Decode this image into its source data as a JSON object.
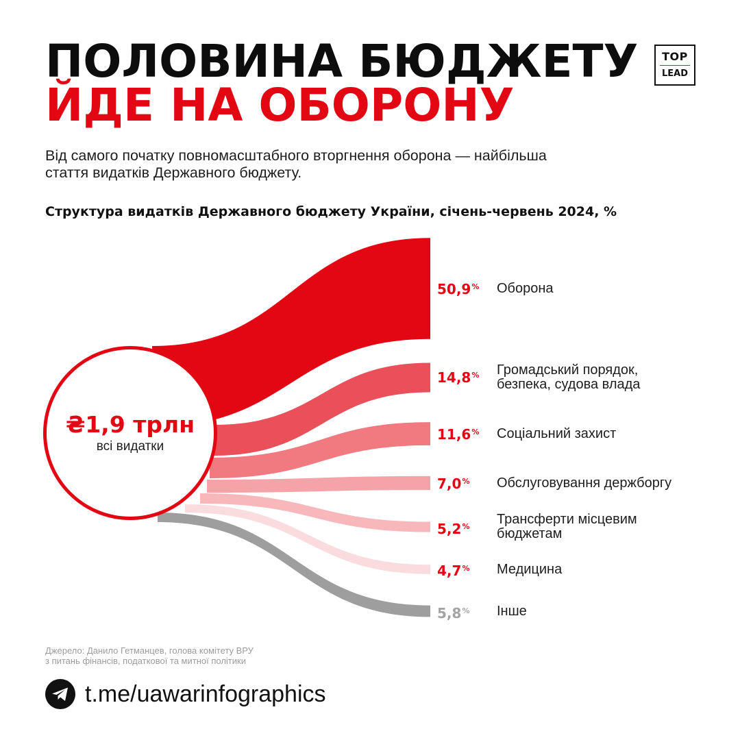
{
  "header": {
    "title_line1": "ПОЛОВИНА БЮДЖЕТУ",
    "title_line2": "ЙДЕ НА ОБОРОНУ",
    "subtitle_line1": "Від самого початку повномасштабного вторгнення оборона — найбільша",
    "subtitle_line2": "стаття видатків Державного бюджету."
  },
  "logo": {
    "top": "TOP",
    "bottom": "LEAD"
  },
  "chart_data": {
    "type": "sankey",
    "title": "Структура видатків Державного бюджету України, січень-червень 2024, %",
    "total": {
      "amount": "₴1,9 трлн",
      "caption": "всі видатки"
    },
    "unit_symbol": "%",
    "flows": [
      {
        "value": 50.9,
        "display": "50,9",
        "label_lines": [
          "Оборона"
        ],
        "color": "#e30613"
      },
      {
        "value": 14.8,
        "display": "14,8",
        "label_lines": [
          "Громадський порядок,",
          "безпека, судова влада"
        ],
        "color": "#ea505a"
      },
      {
        "value": 11.6,
        "display": "11,6",
        "label_lines": [
          "Соціальний захист"
        ],
        "color": "#f07a80"
      },
      {
        "value": 7.0,
        "display": "7,0",
        "label_lines": [
          "Обслуговування держборгу"
        ],
        "color": "#f4a3a8"
      },
      {
        "value": 5.2,
        "display": "5,2",
        "label_lines": [
          "Трансферти місцевим",
          "бюджетам"
        ],
        "color": "#f7b7bb"
      },
      {
        "value": 4.7,
        "display": "4,7",
        "label_lines": [
          "Медицина"
        ],
        "color": "#fbdcde"
      },
      {
        "value": 5.8,
        "display": "5,8",
        "label_lines": [
          "Інше"
        ],
        "color": "#9e9e9e"
      }
    ]
  },
  "footer": {
    "source_line1": "Джерело: Данило Гетманцев, голова комітету ВРУ",
    "source_line2": "з питань фінансів, податкової та митної політики",
    "telegram_link": "t.me/uawarinfographics",
    "icon": "telegram-icon"
  }
}
